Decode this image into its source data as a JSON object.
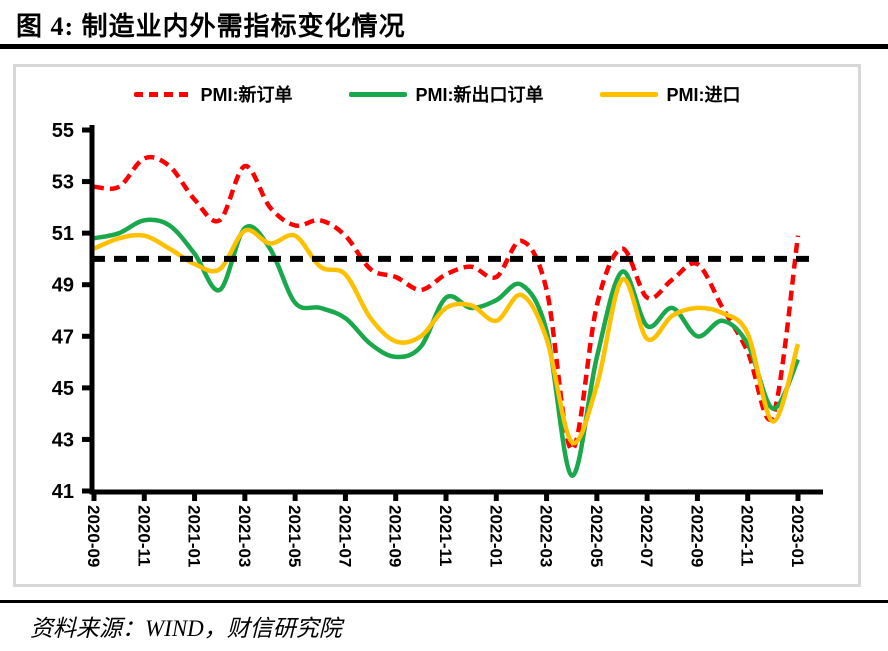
{
  "title": "图 4:  制造业内外需指标变化情况",
  "footer": {
    "source_text": "资料来源：WIND，财信研究院"
  },
  "colors": {
    "red": "#FF0000",
    "green": "#1AA84C",
    "yellow": "#FFC000",
    "axis": "#000000",
    "box_border": "#D8D8D8",
    "threshold": "#000000"
  },
  "chart_data": {
    "type": "line",
    "title": "",
    "xlabel": "",
    "ylabel": "",
    "ylim": [
      41,
      55
    ],
    "y_ticks": [
      55,
      53,
      51,
      49,
      47,
      45,
      43,
      41
    ],
    "x_tick_step": 2,
    "grid": false,
    "legend_position": "top",
    "threshold": 50,
    "x": [
      "2020-09",
      "2020-10",
      "2020-11",
      "2020-12",
      "2021-01",
      "2021-02",
      "2021-03",
      "2021-04",
      "2021-05",
      "2021-06",
      "2021-07",
      "2021-08",
      "2021-09",
      "2021-10",
      "2021-11",
      "2021-12",
      "2022-01",
      "2022-02",
      "2022-03",
      "2022-04",
      "2022-05",
      "2022-06",
      "2022-07",
      "2022-08",
      "2022-09",
      "2022-10",
      "2022-11",
      "2022-12",
      "2023-01"
    ],
    "series": [
      {
        "name": "PMI:新订单",
        "color": "#FF0000",
        "style": "dashed",
        "values": [
          52.8,
          52.8,
          53.9,
          53.6,
          52.3,
          51.5,
          53.6,
          52.0,
          51.3,
          51.5,
          50.9,
          49.6,
          49.3,
          48.8,
          49.4,
          49.7,
          49.3,
          50.7,
          48.8,
          42.6,
          48.2,
          50.4,
          48.5,
          49.2,
          49.8,
          48.1,
          46.4,
          43.9,
          50.9
        ]
      },
      {
        "name": "PMI:新出口订单",
        "color": "#1AA84C",
        "style": "solid",
        "values": [
          50.8,
          51.0,
          51.5,
          51.3,
          50.2,
          48.8,
          51.2,
          50.4,
          48.3,
          48.1,
          47.7,
          46.7,
          46.2,
          46.6,
          48.5,
          48.1,
          48.4,
          49.0,
          47.2,
          41.6,
          46.2,
          49.5,
          47.4,
          48.1,
          47.0,
          47.6,
          46.7,
          44.2,
          46.1
        ]
      },
      {
        "name": "PMI:进口",
        "color": "#FFC000",
        "style": "solid",
        "values": [
          50.4,
          50.8,
          50.9,
          50.4,
          49.8,
          49.6,
          51.1,
          50.6,
          50.9,
          49.7,
          49.4,
          47.7,
          46.8,
          47.0,
          48.1,
          48.2,
          47.6,
          48.6,
          46.9,
          42.9,
          45.1,
          49.2,
          46.9,
          47.8,
          48.1,
          47.9,
          47.1,
          43.7,
          46.7
        ]
      }
    ]
  }
}
